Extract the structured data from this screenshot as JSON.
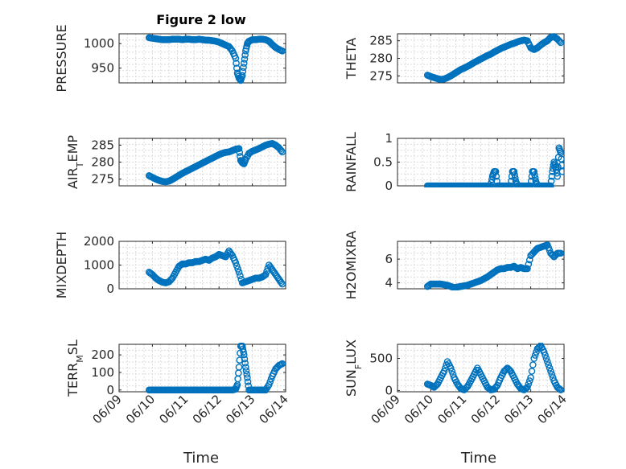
{
  "figure_title": "Figure 2 low",
  "xlabel": "Time",
  "x_tick_labels": [
    "06/09",
    "06/10",
    "06/11",
    "06/12",
    "06/13",
    "06/14"
  ],
  "marker_color": "#0072BD",
  "chart_data": [
    {
      "type": "scatter",
      "title": "Figure 2 low",
      "ylabel": "PRESSURE",
      "ylabel_sub": null,
      "xlim": [
        9,
        14
      ],
      "ylim": [
        920,
        1020
      ],
      "yticks": [
        950,
        1000
      ],
      "grid": true,
      "x": [
        9.9,
        10.0,
        10.1,
        10.2,
        10.3,
        10.4,
        10.5,
        10.6,
        10.7,
        10.8,
        10.9,
        11.0,
        11.1,
        11.2,
        11.3,
        11.4,
        11.5,
        11.6,
        11.7,
        11.8,
        11.9,
        12.0,
        12.1,
        12.2,
        12.3,
        12.4,
        12.5,
        12.55,
        12.6,
        12.65,
        12.7,
        12.75,
        12.8,
        12.85,
        12.9,
        13.0,
        13.1,
        13.2,
        13.3,
        13.4,
        13.5,
        13.6,
        13.7,
        13.8,
        13.9
      ],
      "y": [
        1012,
        1011,
        1010,
        1009,
        1008,
        1008,
        1008,
        1009,
        1009,
        1009,
        1008,
        1009,
        1009,
        1008,
        1008,
        1009,
        1008,
        1007,
        1007,
        1006,
        1005,
        1003,
        1000,
        997,
        994,
        985,
        970,
        940,
        930,
        925,
        935,
        960,
        985,
        1000,
        1005,
        1008,
        1008,
        1009,
        1009,
        1008,
        1005,
        998,
        992,
        988,
        985
      ]
    },
    {
      "type": "scatter",
      "title": "",
      "ylabel": "THETA",
      "ylabel_sub": null,
      "xlim": [
        9,
        14
      ],
      "ylim": [
        273,
        287
      ],
      "yticks": [
        275,
        280,
        285
      ],
      "grid": true,
      "x": [
        9.9,
        10.0,
        10.1,
        10.2,
        10.3,
        10.4,
        10.5,
        10.6,
        10.7,
        10.8,
        10.9,
        11.0,
        11.1,
        11.2,
        11.3,
        11.4,
        11.5,
        11.6,
        11.7,
        11.8,
        11.9,
        12.0,
        12.1,
        12.2,
        12.3,
        12.4,
        12.5,
        12.6,
        12.7,
        12.8,
        12.9,
        13.0,
        13.1,
        13.2,
        13.3,
        13.4,
        13.5,
        13.6,
        13.7,
        13.8,
        13.9
      ],
      "y": [
        275.2,
        274.8,
        274.5,
        274.2,
        274.0,
        274.1,
        274.5,
        275.0,
        275.6,
        276.2,
        276.8,
        277.2,
        277.7,
        278.2,
        278.8,
        279.3,
        279.8,
        280.3,
        280.8,
        281.2,
        281.8,
        282.3,
        282.8,
        283.2,
        283.6,
        284.0,
        284.3,
        284.7,
        285.0,
        285.2,
        285.0,
        283.0,
        282.5,
        283.0,
        283.8,
        284.5,
        285.0,
        286.0,
        286.2,
        285.5,
        284.5
      ]
    },
    {
      "type": "scatter",
      "title": "",
      "ylabel": "AIR",
      "ylabel_sub": "T",
      "ylabel_rest": "EMP",
      "xlim": [
        9,
        14
      ],
      "ylim": [
        273,
        287
      ],
      "yticks": [
        275,
        280,
        285
      ],
      "grid": true,
      "x": [
        9.9,
        10.0,
        10.1,
        10.2,
        10.3,
        10.4,
        10.5,
        10.6,
        10.7,
        10.8,
        10.9,
        11.0,
        11.1,
        11.2,
        11.3,
        11.4,
        11.5,
        11.6,
        11.7,
        11.8,
        11.9,
        12.0,
        12.1,
        12.2,
        12.3,
        12.4,
        12.5,
        12.6,
        12.65,
        12.7,
        12.75,
        12.8,
        12.9,
        13.0,
        13.1,
        13.2,
        13.3,
        13.4,
        13.5,
        13.6,
        13.7,
        13.8,
        13.9
      ],
      "y": [
        276.0,
        275.5,
        275.0,
        274.6,
        274.3,
        274.2,
        274.4,
        274.9,
        275.5,
        276.1,
        276.7,
        277.2,
        277.7,
        278.2,
        278.7,
        279.2,
        279.7,
        280.2,
        280.7,
        281.2,
        281.7,
        282.2,
        282.6,
        282.9,
        283.0,
        283.4,
        283.8,
        284.0,
        280.5,
        279.8,
        279.5,
        280.8,
        282.6,
        283.2,
        283.6,
        284.0,
        284.5,
        285.0,
        285.3,
        285.5,
        285.0,
        284.2,
        283.0
      ]
    },
    {
      "type": "scatter",
      "title": "",
      "ylabel": "RAINFALL",
      "ylabel_sub": null,
      "xlim": [
        9,
        14
      ],
      "ylim": [
        0,
        1
      ],
      "yticks": [
        0,
        0.5,
        1
      ],
      "grid": true,
      "x": [
        9.9,
        10.0,
        10.1,
        10.2,
        10.3,
        10.4,
        10.5,
        10.6,
        10.7,
        10.8,
        10.9,
        11.0,
        11.1,
        11.2,
        11.3,
        11.4,
        11.5,
        11.6,
        11.7,
        11.8,
        11.85,
        11.9,
        11.95,
        12.0,
        12.1,
        12.2,
        12.3,
        12.4,
        12.45,
        12.5,
        12.55,
        12.6,
        12.65,
        12.7,
        12.8,
        12.9,
        13.0,
        13.05,
        13.1,
        13.15,
        13.2,
        13.3,
        13.4,
        13.5,
        13.6,
        13.65,
        13.7,
        13.75,
        13.8,
        13.85,
        13.9,
        13.95
      ],
      "y": [
        0,
        0,
        0,
        0,
        0,
        0,
        0,
        0,
        0,
        0,
        0,
        0,
        0,
        0,
        0,
        0,
        0,
        0,
        0,
        0,
        0.2,
        0.3,
        0.3,
        0,
        0,
        0,
        0,
        0,
        0.3,
        0.3,
        0.1,
        0,
        0,
        0,
        0,
        0,
        0,
        0.3,
        0.3,
        0.1,
        0,
        0,
        0,
        0,
        0,
        0.3,
        0.5,
        0.4,
        0.2,
        0.8,
        0.7,
        0.3
      ]
    },
    {
      "type": "scatter",
      "title": "",
      "ylabel": "MIXDEPTH",
      "ylabel_sub": null,
      "xlim": [
        9,
        14
      ],
      "ylim": [
        0,
        2000
      ],
      "yticks": [
        0,
        1000,
        2000
      ],
      "grid": true,
      "x": [
        9.9,
        10.0,
        10.1,
        10.2,
        10.3,
        10.4,
        10.5,
        10.6,
        10.7,
        10.8,
        10.9,
        11.0,
        11.1,
        11.2,
        11.3,
        11.4,
        11.5,
        11.6,
        11.7,
        11.8,
        11.9,
        12.0,
        12.1,
        12.2,
        12.3,
        12.4,
        12.5,
        12.6,
        12.7,
        12.8,
        12.9,
        13.0,
        13.1,
        13.2,
        13.3,
        13.4,
        13.5,
        13.6,
        13.7,
        13.8,
        13.9
      ],
      "y": [
        700,
        600,
        450,
        350,
        280,
        250,
        300,
        450,
        700,
        950,
        1050,
        1050,
        1100,
        1100,
        1150,
        1150,
        1200,
        1250,
        1200,
        1300,
        1350,
        1450,
        1400,
        1350,
        1600,
        1400,
        1100,
        700,
        250,
        300,
        350,
        400,
        450,
        450,
        500,
        600,
        1000,
        800,
        600,
        400,
        200
      ]
    },
    {
      "type": "scatter",
      "title": "",
      "ylabel": "H2OMIXRA",
      "ylabel_sub": null,
      "xlim": [
        9,
        14
      ],
      "ylim": [
        3.5,
        7.5
      ],
      "yticks": [
        4,
        6
      ],
      "grid": true,
      "x": [
        9.9,
        10.0,
        10.1,
        10.2,
        10.3,
        10.4,
        10.5,
        10.6,
        10.7,
        10.8,
        10.9,
        11.0,
        11.1,
        11.2,
        11.3,
        11.4,
        11.5,
        11.6,
        11.7,
        11.8,
        11.9,
        12.0,
        12.1,
        12.2,
        12.3,
        12.4,
        12.5,
        12.6,
        12.7,
        12.8,
        12.9,
        13.0,
        13.1,
        13.2,
        13.3,
        13.4,
        13.5,
        13.6,
        13.7,
        13.8,
        13.9
      ],
      "y": [
        3.7,
        3.9,
        3.9,
        3.9,
        3.9,
        3.85,
        3.8,
        3.7,
        3.6,
        3.65,
        3.7,
        3.75,
        3.8,
        3.9,
        4.0,
        4.1,
        4.2,
        4.35,
        4.5,
        4.7,
        4.9,
        5.1,
        5.2,
        5.2,
        5.3,
        5.3,
        5.4,
        5.2,
        5.3,
        5.2,
        5.2,
        6.3,
        6.6,
        6.9,
        7.0,
        7.1,
        7.2,
        6.5,
        6.2,
        6.5,
        6.5
      ]
    },
    {
      "type": "scatter",
      "title": "",
      "ylabel": "TERR",
      "ylabel_sub": "M",
      "ylabel_rest": "SL",
      "xlim": [
        9,
        14
      ],
      "ylim": [
        -10,
        260
      ],
      "yticks": [
        0,
        100,
        200
      ],
      "grid": true,
      "x": [
        9.9,
        10.0,
        10.1,
        10.2,
        10.3,
        10.4,
        10.5,
        10.6,
        10.7,
        10.8,
        10.9,
        11.0,
        11.1,
        11.2,
        11.3,
        11.4,
        11.5,
        11.6,
        11.7,
        11.8,
        11.9,
        12.0,
        12.1,
        12.2,
        12.3,
        12.4,
        12.5,
        12.55,
        12.6,
        12.65,
        12.7,
        12.75,
        12.8,
        12.85,
        12.9,
        13.0,
        13.1,
        13.2,
        13.3,
        13.4,
        13.5,
        13.6,
        13.7,
        13.8,
        13.9
      ],
      "y": [
        0,
        0,
        0,
        0,
        0,
        0,
        0,
        0,
        0,
        0,
        0,
        0,
        0,
        0,
        0,
        0,
        0,
        0,
        0,
        0,
        0,
        0,
        0,
        0,
        0,
        0,
        5,
        30,
        130,
        250,
        250,
        200,
        130,
        70,
        0,
        0,
        0,
        0,
        0,
        0,
        30,
        80,
        120,
        140,
        150
      ]
    },
    {
      "type": "scatter",
      "title": "",
      "ylabel": "SUN",
      "ylabel_sub": "F",
      "ylabel_rest": "LUX",
      "xlim": [
        9,
        14
      ],
      "ylim": [
        -20,
        720
      ],
      "yticks": [
        0,
        500
      ],
      "grid": true,
      "x": [
        9.9,
        10.0,
        10.1,
        10.2,
        10.3,
        10.4,
        10.5,
        10.6,
        10.7,
        10.8,
        10.9,
        11.0,
        11.1,
        11.2,
        11.3,
        11.4,
        11.5,
        11.6,
        11.7,
        11.8,
        11.9,
        12.0,
        12.1,
        12.2,
        12.3,
        12.4,
        12.5,
        12.6,
        12.7,
        12.8,
        12.9,
        13.0,
        13.1,
        13.2,
        13.3,
        13.4,
        13.5,
        13.6,
        13.7,
        13.8,
        13.9
      ],
      "y": [
        100,
        80,
        50,
        100,
        200,
        300,
        450,
        350,
        200,
        100,
        30,
        10,
        60,
        150,
        250,
        350,
        250,
        150,
        50,
        10,
        20,
        80,
        200,
        300,
        350,
        300,
        200,
        100,
        30,
        10,
        50,
        200,
        500,
        650,
        700,
        600,
        450,
        300,
        150,
        50,
        10
      ]
    }
  ]
}
